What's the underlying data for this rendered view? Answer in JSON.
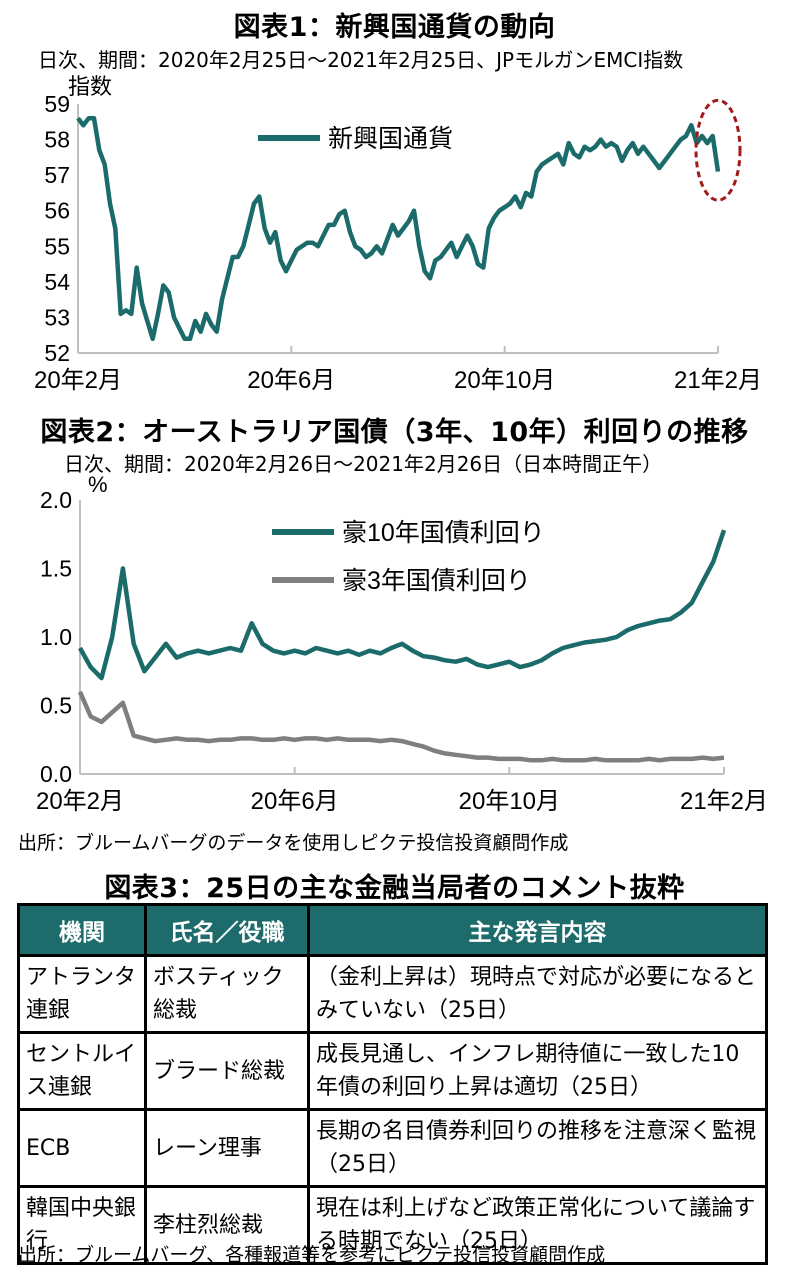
{
  "fig1": {
    "title": "図表1：新興国通貨の動向",
    "subtitle": "日次、期間：2020年2月25日～2021年2月25日、JPモルガンEMCI指数",
    "unit": "指数",
    "legend": "新興国通貨",
    "color": "#1b6b6b",
    "highlight_color": "#a31919"
  },
  "fig2": {
    "title": "図表2：オーストラリア国債（3年、10年）利回りの推移",
    "subtitle": "日次、期間：2020年2月26日～2021年2月26日（日本時間正午）",
    "unit": "%",
    "source": "出所：ブルームバーグのデータを使用しピクテ投信投資顧問作成",
    "color10": "#1b6b6b",
    "color3": "#7f7f7f"
  },
  "fig3": {
    "title": "図表3：25日の主な金融当局者のコメント抜粋",
    "headers": [
      "機関",
      "氏名／役職",
      "主な発言内容"
    ],
    "rows": [
      [
        "アトランタ連銀",
        "ボスティック総裁",
        "（金利上昇は）現時点で対応が必要になるとみていない（25日）"
      ],
      [
        "セントルイス連銀",
        "ブラード総裁",
        "成長見通し、インフレ期待値に一致した10年債の利回り上昇は適切（25日）"
      ],
      [
        "ECB",
        "レーン理事",
        "長期の名目債券利回りの推移を注意深く監視（25日）"
      ],
      [
        "韓国中央銀行",
        "李柱烈総裁",
        "現在は利上げなど政策正常化について議論する時期でない（25日）"
      ]
    ],
    "source": "出所：ブルームバーグ、各種報道等を参考にピクテ投信投資顧問作成",
    "header_color": "#1e6b6b"
  },
  "chart_data": [
    {
      "type": "line",
      "title": "図表1：新興国通貨の動向",
      "ylabel": "指数",
      "ylim": [
        52,
        59
      ],
      "yticks": [
        "52",
        "53",
        "54",
        "55",
        "56",
        "57",
        "58",
        "59"
      ],
      "xticks": [
        "20年2月",
        "20年6月",
        "20年10月",
        "21年2月"
      ],
      "x_tick_positions": [
        0,
        4,
        8,
        12
      ],
      "xlim": [
        0,
        12
      ],
      "legend": "top-center",
      "series": [
        {
          "name": "新興国通貨",
          "x": [
            0,
            0.1,
            0.2,
            0.3,
            0.4,
            0.5,
            0.6,
            0.7,
            0.8,
            0.9,
            1.0,
            1.1,
            1.2,
            1.3,
            1.4,
            1.5,
            1.6,
            1.7,
            1.8,
            1.9,
            2.0,
            2.1,
            2.2,
            2.3,
            2.4,
            2.5,
            2.6,
            2.7,
            2.8,
            2.9,
            3.0,
            3.1,
            3.2,
            3.3,
            3.4,
            3.5,
            3.6,
            3.7,
            3.8,
            3.9,
            4.0,
            4.1,
            4.2,
            4.3,
            4.4,
            4.5,
            4.6,
            4.7,
            4.8,
            4.9,
            5.0,
            5.1,
            5.2,
            5.3,
            5.4,
            5.5,
            5.6,
            5.7,
            5.8,
            5.9,
            6.0,
            6.1,
            6.2,
            6.3,
            6.4,
            6.5,
            6.6,
            6.7,
            6.8,
            6.9,
            7.0,
            7.1,
            7.2,
            7.3,
            7.4,
            7.5,
            7.6,
            7.7,
            7.8,
            7.9,
            8.0,
            8.1,
            8.2,
            8.3,
            8.4,
            8.5,
            8.6,
            8.7,
            8.8,
            8.9,
            9.0,
            9.1,
            9.2,
            9.3,
            9.4,
            9.5,
            9.6,
            9.7,
            9.8,
            9.9,
            10.0,
            10.1,
            10.2,
            10.3,
            10.4,
            10.5,
            10.6,
            10.7,
            10.8,
            10.9,
            11.0,
            11.1,
            11.2,
            11.3,
            11.4,
            11.5,
            11.6,
            11.7,
            11.8,
            11.9,
            12.0
          ],
          "values": [
            58.6,
            58.4,
            58.6,
            58.6,
            57.7,
            57.3,
            56.2,
            55.5,
            53.1,
            53.2,
            53.1,
            54.4,
            53.4,
            52.9,
            52.4,
            53.1,
            53.9,
            53.7,
            53.0,
            52.7,
            52.4,
            52.4,
            52.9,
            52.6,
            53.1,
            52.8,
            52.6,
            53.5,
            54.1,
            54.7,
            54.7,
            55.0,
            55.6,
            56.2,
            56.4,
            55.5,
            55.1,
            55.4,
            54.6,
            54.3,
            54.6,
            54.9,
            55.0,
            55.1,
            55.1,
            55.0,
            55.3,
            55.6,
            55.6,
            55.9,
            56.0,
            55.4,
            55.0,
            54.9,
            54.7,
            54.8,
            55.0,
            54.8,
            55.2,
            55.6,
            55.3,
            55.5,
            55.7,
            56.0,
            55.0,
            54.3,
            54.1,
            54.6,
            54.7,
            54.9,
            55.1,
            54.7,
            55.0,
            55.3,
            55.0,
            54.5,
            54.4,
            55.5,
            55.8,
            56.0,
            56.1,
            56.2,
            56.4,
            56.1,
            56.5,
            56.4,
            57.1,
            57.3,
            57.4,
            57.5,
            57.6,
            57.3,
            57.9,
            57.6,
            57.5,
            57.8,
            57.7,
            57.8,
            58.0,
            57.8,
            57.9,
            57.8,
            57.4,
            57.7,
            57.9,
            57.6,
            57.8,
            57.6,
            57.4,
            57.2,
            57.4,
            57.6,
            57.8,
            58.0,
            58.1,
            58.4,
            57.9,
            58.1,
            57.9,
            58.1,
            57.1
          ]
        }
      ]
    },
    {
      "type": "line",
      "title": "図表2：オーストラリア国債（3年、10年）利回りの推移",
      "ylabel": "%",
      "ylim": [
        0.0,
        2.0
      ],
      "yticks": [
        "0.0",
        "0.5",
        "1.0",
        "1.5",
        "2.0"
      ],
      "xticks": [
        "20年2月",
        "20年6月",
        "20年10月",
        "21年2月"
      ],
      "x_tick_positions": [
        0,
        4,
        8,
        12
      ],
      "xlim": [
        0,
        12
      ],
      "legend": "top-center",
      "series": [
        {
          "name": "豪10年国債利回り",
          "x": [
            0,
            0.2,
            0.4,
            0.6,
            0.8,
            1.0,
            1.2,
            1.4,
            1.6,
            1.8,
            2.0,
            2.2,
            2.4,
            2.6,
            2.8,
            3.0,
            3.2,
            3.4,
            3.6,
            3.8,
            4.0,
            4.2,
            4.4,
            4.6,
            4.8,
            5.0,
            5.2,
            5.4,
            5.6,
            5.8,
            6.0,
            6.2,
            6.4,
            6.6,
            6.8,
            7.0,
            7.2,
            7.4,
            7.6,
            7.8,
            8.0,
            8.2,
            8.4,
            8.6,
            8.8,
            9.0,
            9.2,
            9.4,
            9.6,
            9.8,
            10.0,
            10.2,
            10.4,
            10.6,
            10.8,
            11.0,
            11.2,
            11.4,
            11.6,
            11.8,
            12.0
          ],
          "values": [
            0.92,
            0.78,
            0.7,
            1.0,
            1.5,
            0.95,
            0.75,
            0.85,
            0.95,
            0.85,
            0.88,
            0.9,
            0.88,
            0.9,
            0.92,
            0.9,
            1.1,
            0.95,
            0.9,
            0.88,
            0.9,
            0.88,
            0.92,
            0.9,
            0.88,
            0.9,
            0.87,
            0.9,
            0.88,
            0.92,
            0.95,
            0.9,
            0.86,
            0.85,
            0.83,
            0.82,
            0.84,
            0.8,
            0.78,
            0.8,
            0.82,
            0.78,
            0.8,
            0.83,
            0.88,
            0.92,
            0.94,
            0.96,
            0.97,
            0.98,
            1.0,
            1.05,
            1.08,
            1.1,
            1.12,
            1.13,
            1.18,
            1.25,
            1.4,
            1.55,
            1.78
          ]
        },
        {
          "name": "豪3年国債利回り",
          "x": [
            0,
            0.2,
            0.4,
            0.6,
            0.8,
            1.0,
            1.2,
            1.4,
            1.6,
            1.8,
            2.0,
            2.2,
            2.4,
            2.6,
            2.8,
            3.0,
            3.2,
            3.4,
            3.6,
            3.8,
            4.0,
            4.2,
            4.4,
            4.6,
            4.8,
            5.0,
            5.2,
            5.4,
            5.6,
            5.8,
            6.0,
            6.2,
            6.4,
            6.6,
            6.8,
            7.0,
            7.2,
            7.4,
            7.6,
            7.8,
            8.0,
            8.2,
            8.4,
            8.6,
            8.8,
            9.0,
            9.2,
            9.4,
            9.6,
            9.8,
            10.0,
            10.2,
            10.4,
            10.6,
            10.8,
            11.0,
            11.2,
            11.4,
            11.6,
            11.8,
            12.0
          ],
          "values": [
            0.6,
            0.42,
            0.38,
            0.45,
            0.52,
            0.28,
            0.26,
            0.24,
            0.25,
            0.26,
            0.25,
            0.25,
            0.24,
            0.25,
            0.25,
            0.26,
            0.26,
            0.25,
            0.25,
            0.26,
            0.25,
            0.26,
            0.26,
            0.25,
            0.26,
            0.25,
            0.25,
            0.25,
            0.24,
            0.25,
            0.24,
            0.22,
            0.2,
            0.17,
            0.15,
            0.14,
            0.13,
            0.12,
            0.12,
            0.11,
            0.11,
            0.11,
            0.1,
            0.1,
            0.11,
            0.1,
            0.1,
            0.1,
            0.11,
            0.1,
            0.1,
            0.1,
            0.1,
            0.11,
            0.1,
            0.11,
            0.11,
            0.11,
            0.12,
            0.11,
            0.12
          ]
        }
      ]
    }
  ]
}
